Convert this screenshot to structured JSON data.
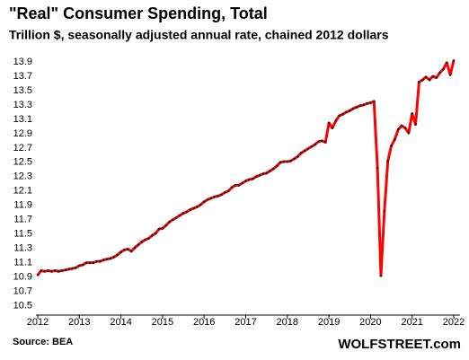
{
  "chart_data": {
    "type": "line",
    "title": "\"Real\" Consumer Spending, Total",
    "subtitle": "Trillion $, seasonally adjusted annual rate, chained 2012 dollars",
    "source": "Source: BEA",
    "watermark": "WOLFSTREET.com",
    "x": [
      2012,
      2012.083,
      2012.167,
      2012.25,
      2012.333,
      2012.417,
      2012.5,
      2012.583,
      2012.667,
      2012.75,
      2012.833,
      2012.917,
      2013,
      2013.083,
      2013.167,
      2013.25,
      2013.333,
      2013.417,
      2013.5,
      2013.583,
      2013.667,
      2013.75,
      2013.833,
      2013.917,
      2014,
      2014.083,
      2014.167,
      2014.25,
      2014.333,
      2014.417,
      2014.5,
      2014.583,
      2014.667,
      2014.75,
      2014.833,
      2014.917,
      2015,
      2015.083,
      2015.167,
      2015.25,
      2015.333,
      2015.417,
      2015.5,
      2015.583,
      2015.667,
      2015.75,
      2015.833,
      2015.917,
      2016,
      2016.083,
      2016.167,
      2016.25,
      2016.333,
      2016.417,
      2016.5,
      2016.583,
      2016.667,
      2016.75,
      2016.833,
      2016.917,
      2017,
      2017.083,
      2017.167,
      2017.25,
      2017.333,
      2017.417,
      2017.5,
      2017.583,
      2017.667,
      2017.75,
      2017.833,
      2017.917,
      2018,
      2018.083,
      2018.167,
      2018.25,
      2018.333,
      2018.417,
      2018.5,
      2018.583,
      2018.667,
      2018.75,
      2018.833,
      2018.917,
      2019,
      2019.083,
      2019.167,
      2019.25,
      2019.333,
      2019.417,
      2019.5,
      2019.583,
      2019.667,
      2019.75,
      2019.833,
      2019.917,
      2020,
      2020.083,
      2020.167,
      2020.25,
      2020.333,
      2020.417,
      2020.5,
      2020.583,
      2020.667,
      2020.75,
      2020.833,
      2020.917,
      2021,
      2021.083,
      2021.167,
      2021.25,
      2021.333,
      2021.417,
      2021.5,
      2021.583,
      2021.667,
      2021.75,
      2021.833,
      2021.917,
      2022
    ],
    "series": [
      {
        "name": "Real consumer spending",
        "color": "#ff0000",
        "marker_color": "#222222",
        "values": [
          10.93,
          10.99,
          10.98,
          10.99,
          10.98,
          10.99,
          10.98,
          10.99,
          11.0,
          11.01,
          11.02,
          11.03,
          11.06,
          11.07,
          11.1,
          11.1,
          11.1,
          11.12,
          11.12,
          11.14,
          11.15,
          11.16,
          11.18,
          11.21,
          11.25,
          11.28,
          11.29,
          11.26,
          11.31,
          11.35,
          11.39,
          11.42,
          11.44,
          11.48,
          11.51,
          11.57,
          11.58,
          11.62,
          11.67,
          11.7,
          11.73,
          11.76,
          11.79,
          11.81,
          11.84,
          11.86,
          11.88,
          11.91,
          11.95,
          11.98,
          12.0,
          12.02,
          12.03,
          12.05,
          12.08,
          12.1,
          12.15,
          12.18,
          12.18,
          12.21,
          12.24,
          12.26,
          12.27,
          12.3,
          12.32,
          12.34,
          12.35,
          12.38,
          12.41,
          12.45,
          12.5,
          12.51,
          12.51,
          12.52,
          12.55,
          12.58,
          12.63,
          12.66,
          12.69,
          12.72,
          12.75,
          12.79,
          12.8,
          12.78,
          13.05,
          12.98,
          13.08,
          13.15,
          13.17,
          13.2,
          13.22,
          13.25,
          13.27,
          13.29,
          13.3,
          13.32,
          13.33,
          13.35,
          12.42,
          10.92,
          11.82,
          12.52,
          12.73,
          12.82,
          12.96,
          13.01,
          12.98,
          12.91,
          13.18,
          13.03,
          13.62,
          13.65,
          13.69,
          13.65,
          13.7,
          13.68,
          13.75,
          13.8,
          13.89,
          13.72,
          13.92
        ]
      }
    ],
    "xlim": [
      2012,
      2022
    ],
    "xticks": [
      2012,
      2013,
      2014,
      2015,
      2016,
      2017,
      2018,
      2019,
      2020,
      2021,
      2022
    ],
    "ylim": [
      10.37,
      14.0
    ],
    "yticks": [
      10.5,
      10.7,
      10.9,
      11.1,
      11.3,
      11.5,
      11.7,
      11.9,
      12.1,
      12.3,
      12.5,
      12.7,
      12.9,
      13.1,
      13.3,
      13.5,
      13.7,
      13.9
    ],
    "grid": false
  }
}
